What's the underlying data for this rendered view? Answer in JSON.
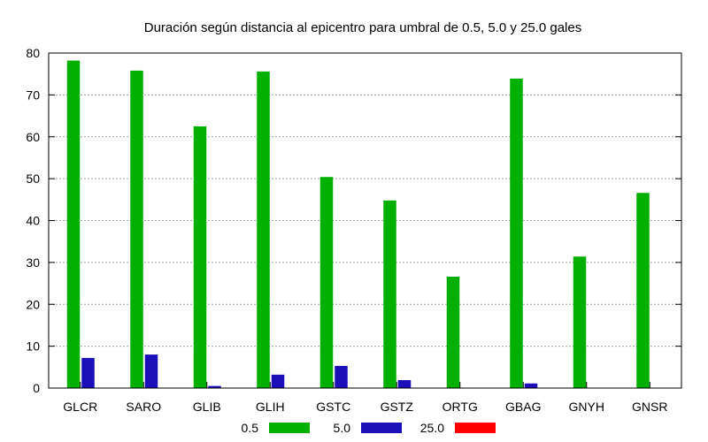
{
  "chart_data": {
    "type": "bar",
    "title": "Duración según distancia al epicentro para umbral de 0.5, 5.0 y 25.0 gales",
    "xlabel": "",
    "ylabel": "",
    "ylim": [
      0,
      80
    ],
    "yticks": [
      0,
      10,
      20,
      30,
      40,
      50,
      60,
      70,
      80
    ],
    "grid": true,
    "legend_position": "bottom",
    "categories": [
      "GLCR",
      "SARO",
      "GLIB",
      "GLIH",
      "GSTC",
      "GSTZ",
      "ORTG",
      "GBAG",
      "GNYH",
      "GNSR"
    ],
    "series": [
      {
        "name": "0.5",
        "color": "#00b000",
        "values": [
          78.2,
          75.8,
          62.5,
          75.6,
          50.4,
          44.8,
          26.6,
          73.9,
          31.4,
          46.6
        ]
      },
      {
        "name": "5.0",
        "color": "#1a0fb8",
        "values": [
          7.2,
          8.0,
          0.5,
          3.2,
          5.3,
          1.9,
          0,
          1.1,
          0,
          0
        ]
      },
      {
        "name": "25.0",
        "color": "#ff0000",
        "values": [
          0,
          0,
          0,
          0,
          0,
          0,
          0,
          0,
          0,
          0
        ]
      }
    ]
  }
}
